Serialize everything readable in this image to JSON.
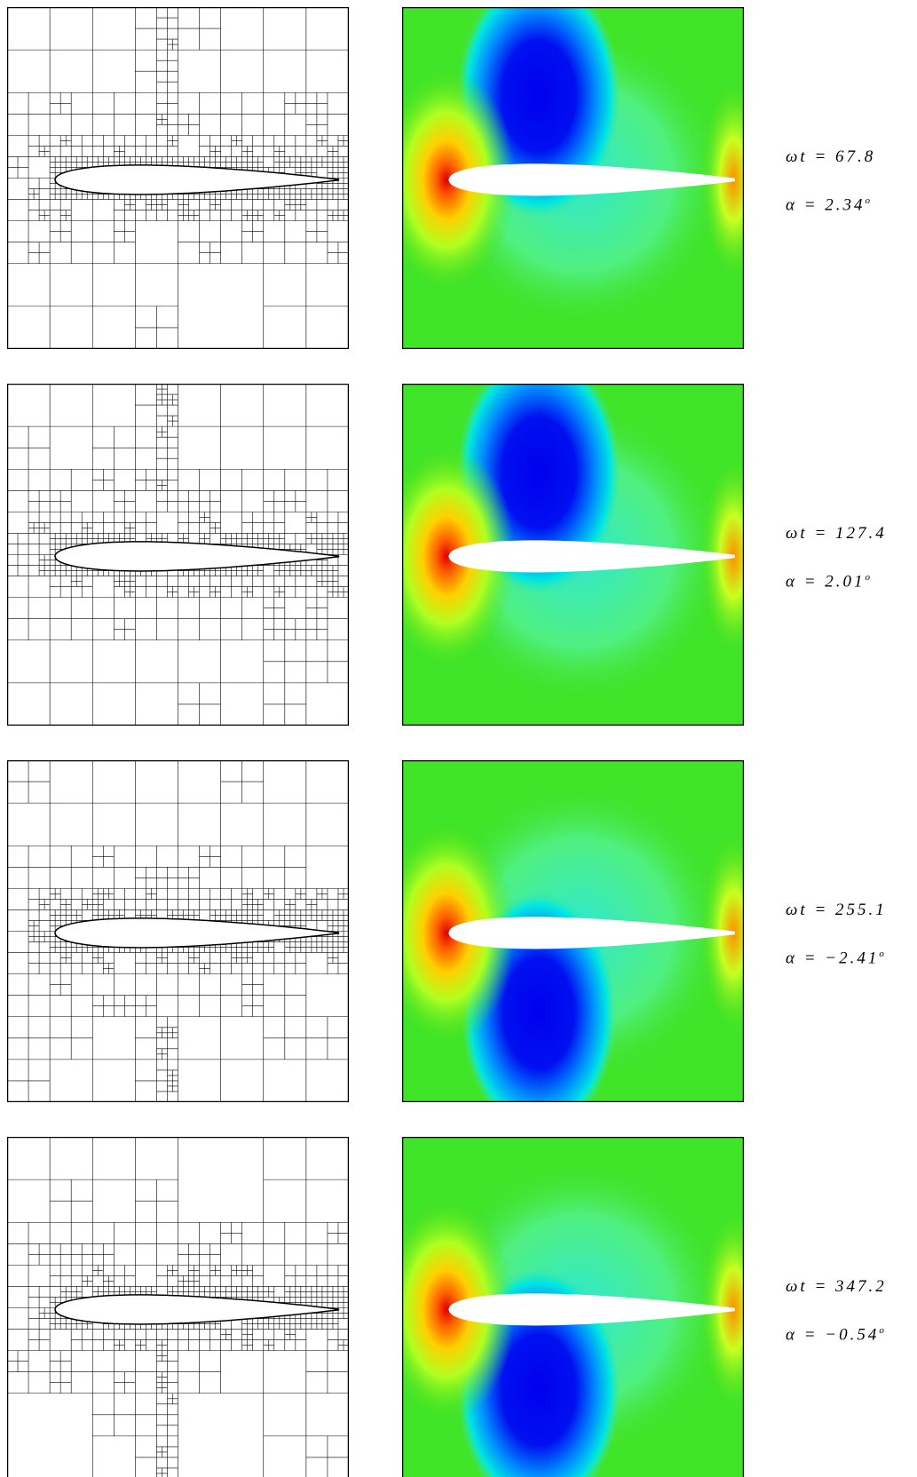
{
  "frames": [
    {
      "time": "ωt = 67.8",
      "angle": "α = 2.34",
      "degree": "o"
    },
    {
      "time": "ωt = 127.4",
      "angle": "α = 2.01",
      "degree": "o"
    },
    {
      "time": "ωt = 255.1",
      "angle": "α = −2.41",
      "degree": "o"
    },
    {
      "time": "ωt = 347.2",
      "angle": "α = −0.54",
      "degree": "o"
    }
  ]
}
